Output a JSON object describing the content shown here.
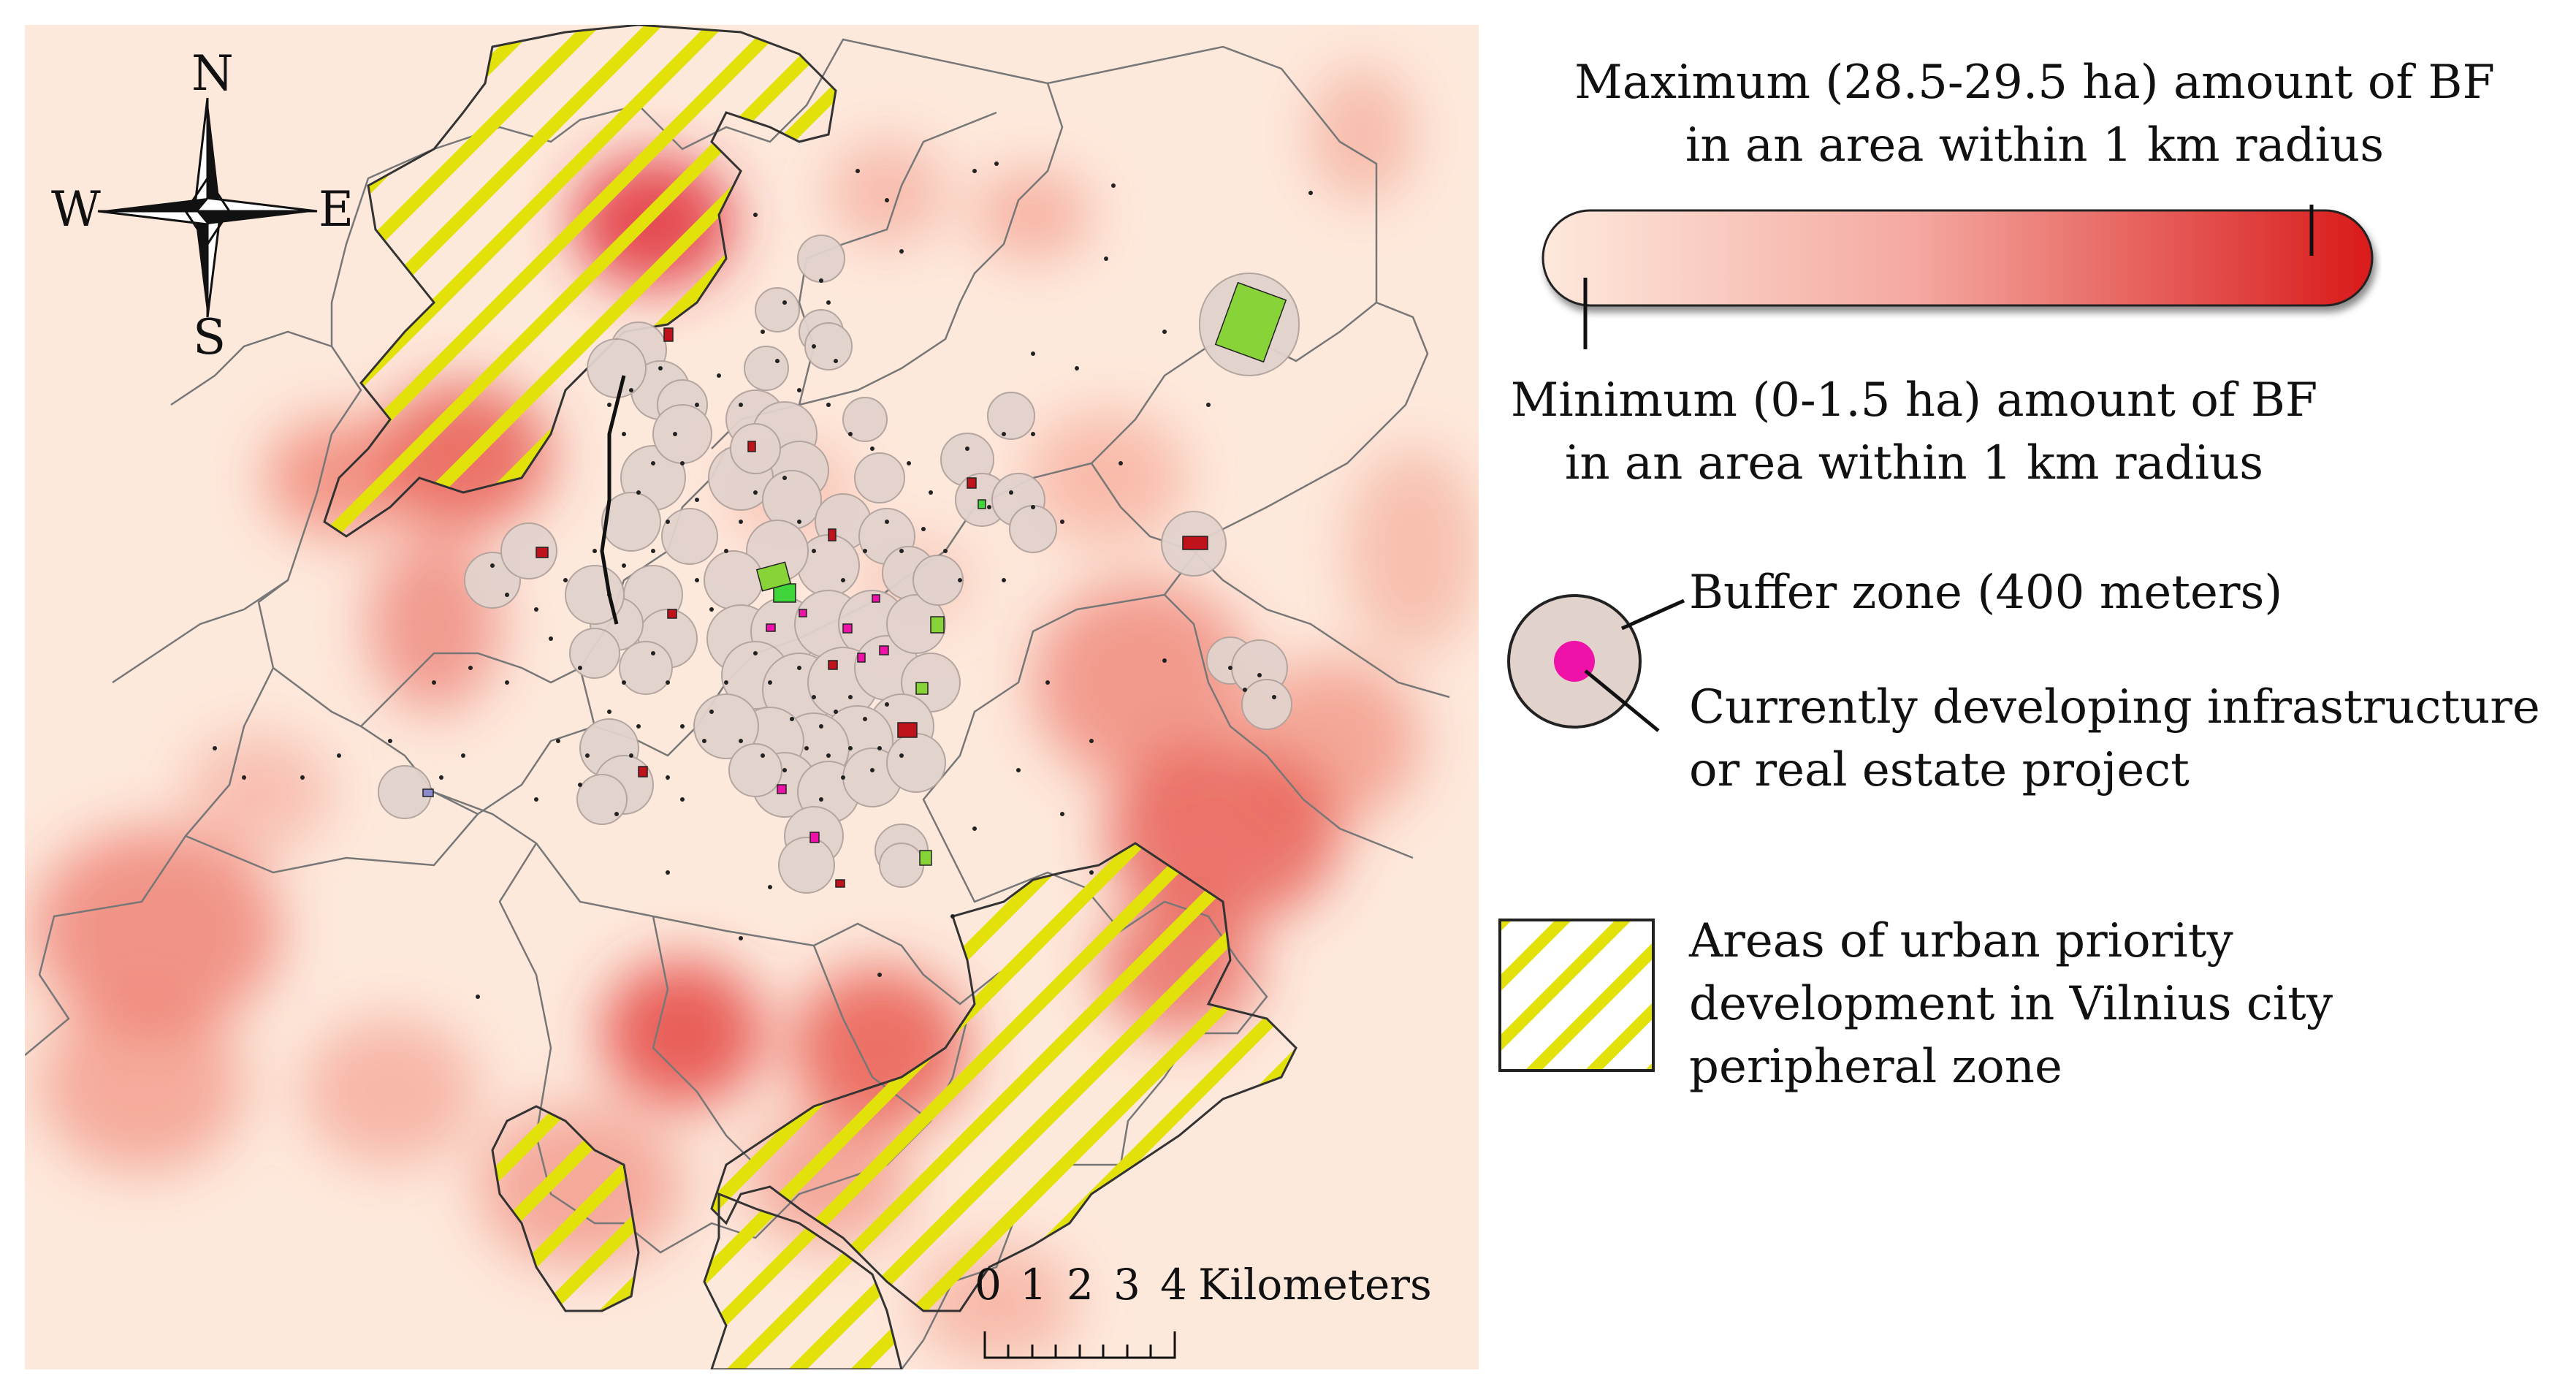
{
  "map": {
    "compass": {
      "north": "N",
      "south": "S",
      "west": "W",
      "east": "E"
    },
    "scale": {
      "ticks": [
        "0",
        "1",
        "2",
        "3",
        "4"
      ],
      "unit": "Kilometers"
    }
  },
  "legend": {
    "gradient": {
      "max_label_line1": "Maximum (28.5-29.5 ha) amount of BF",
      "max_label_line2": "in an area within 1 km radius",
      "min_label_line1": "Minimum (0-1.5 ha) amount of BF",
      "min_label_line2": "in an area within 1 km radius",
      "color_min": "#fde9dc",
      "color_max": "#d91a1a"
    },
    "buffer": {
      "buffer_label": "Buffer zone (400 meters)",
      "project_label_line1": "Currently developing infrastructure",
      "project_label_line2": "or real estate project",
      "buffer_color": "#e2d2cc",
      "project_color": "#ee12a8"
    },
    "priority": {
      "label_line1": "Areas of urban priority",
      "label_line2": "development in Vilnius city",
      "label_line3": "peripheral zone",
      "hatch_color": "#e3e10a"
    }
  }
}
